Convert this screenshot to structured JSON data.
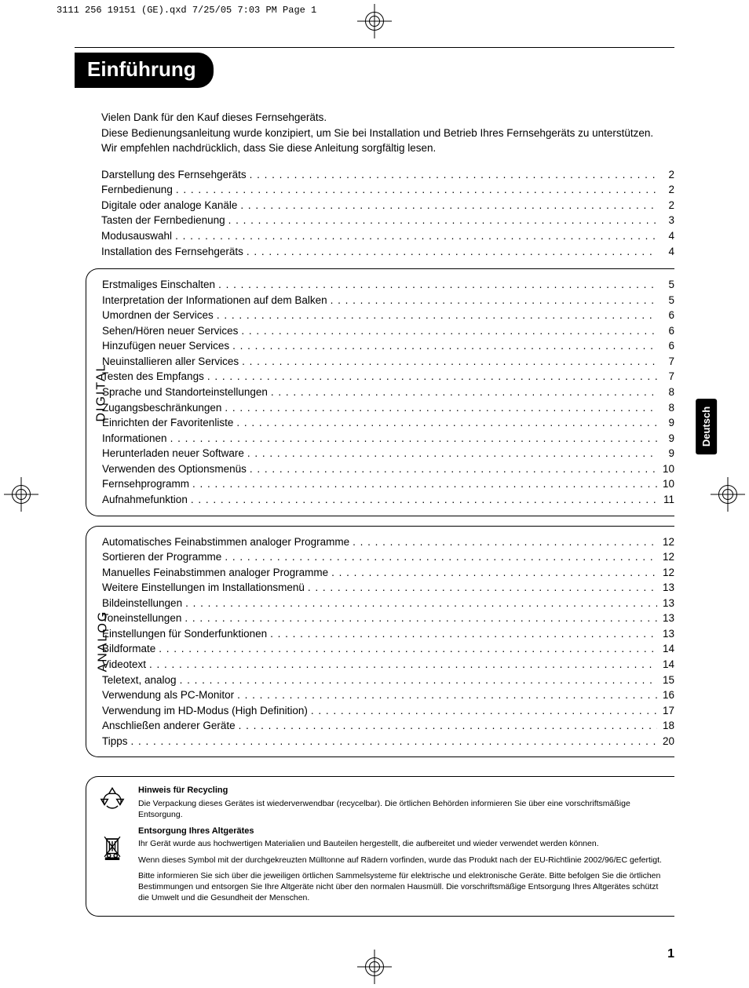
{
  "slug": "3111 256 19151 (GE).qxd  7/25/05  7:03 PM  Page 1",
  "language_tab": "Deutsch",
  "page_number": "1",
  "title": "Einführung",
  "intro": [
    "Vielen Dank für den Kauf dieses Fernsehgeräts.",
    "Diese Bedienungsanleitung wurde konzipiert, um Sie bei Installation und Betrieb Ihres Fernsehgeräts zu unterstützen.",
    "Wir empfehlen nachdrücklich, dass Sie diese Anleitung sorgfältig lesen."
  ],
  "sections": [
    {
      "label": "",
      "boxed": false,
      "items": [
        {
          "t": "Darstellung des Fernsehgeräts",
          "p": "2"
        },
        {
          "t": "Fernbedienung",
          "p": "2"
        },
        {
          "t": "Digitale oder analoge Kanäle",
          "p": "2"
        },
        {
          "t": "Tasten der Fernbedienung",
          "p": "3"
        },
        {
          "t": "Modusauswahl",
          "p": "4"
        },
        {
          "t": "Installation des Fernsehgeräts",
          "p": "4"
        }
      ]
    },
    {
      "label": "DIGITAL",
      "boxed": true,
      "items": [
        {
          "t": "Erstmaliges Einschalten",
          "p": "5"
        },
        {
          "t": "Interpretation der Informationen auf dem Balken",
          "p": "5"
        },
        {
          "t": "Umordnen der Services",
          "p": "6"
        },
        {
          "t": "Sehen/Hören neuer Services",
          "p": "6"
        },
        {
          "t": "Hinzufügen neuer Services",
          "p": "6"
        },
        {
          "t": "Neuinstallieren aller Services",
          "p": "7"
        },
        {
          "t": "Testen des Empfangs",
          "p": "7"
        },
        {
          "t": "Sprache und Standorteinstellungen",
          "p": "8"
        },
        {
          "t": "Zugangsbeschränkungen",
          "p": "8"
        },
        {
          "t": "Einrichten der Favoritenliste",
          "p": "9"
        },
        {
          "t": "Informationen",
          "p": "9"
        },
        {
          "t": "Herunterladen neuer Software",
          "p": "9"
        },
        {
          "t": "Verwenden des Optionsmenüs",
          "p": "10"
        },
        {
          "t": "Fernsehprogramm",
          "p": "10"
        },
        {
          "t": "Aufnahmefunktion",
          "p": "11"
        }
      ]
    },
    {
      "label": "ANALOG",
      "boxed": true,
      "items": [
        {
          "t": "Automatisches Feinabstimmen analoger Programme",
          "p": "12"
        },
        {
          "t": "Sortieren der Programme",
          "p": "12"
        },
        {
          "t": "Manuelles Feinabstimmen analoger Programme",
          "p": "12"
        },
        {
          "t": "Weitere Einstellungen im Installationsmenü",
          "p": "13"
        },
        {
          "t": "Bildeinstellungen",
          "p": "13"
        },
        {
          "t": "Toneinstellungen",
          "p": "13"
        },
        {
          "t": "Einstellungen für Sonderfunktionen",
          "p": "13"
        },
        {
          "t": "Bildformate",
          "p": "14"
        },
        {
          "t": "Videotext",
          "p": "14"
        },
        {
          "t": "Teletext, analog",
          "p": "15"
        },
        {
          "t": "Verwendung als PC-Monitor",
          "p": "16"
        },
        {
          "t": "Verwendung im HD-Modus (High Definition)",
          "p": "17"
        },
        {
          "t": "Anschließen anderer Geräte",
          "p": "18"
        },
        {
          "t": "Tipps",
          "p": "20"
        }
      ]
    }
  ],
  "footer": {
    "h1": "Hinweis für Recycling",
    "p1": "Die Verpackung dieses Gerätes ist wiederverwendbar (recycelbar). Die örtlichen Behörden informieren Sie über eine vorschriftsmäßige Entsorgung.",
    "h2": "Entsorgung Ihres Altgerätes",
    "p2": "Ihr Gerät wurde aus hochwertigen Materialien und Bauteilen hergestellt, die aufbereitet und wieder verwendet werden können.",
    "p3": "Wenn dieses Symbol mit der durchgekreuzten Mülltonne auf Rädern vorfinden, wurde das Produkt nach der EU-Richtlinie 2002/96/EC gefertigt.",
    "p4": "Bitte informieren Sie sich über die jeweiligen örtlichen Sammelsysteme für elektrische und elektronische Geräte. Bitte befolgen Sie die örtlichen Bestimmungen und entsorgen Sie Ihre Altgeräte nicht über den normalen Hausmüll. Die vorschriftsmäßige Entsorgung Ihres Altgerätes schützt die Umwelt und die Gesundheit der Menschen."
  }
}
